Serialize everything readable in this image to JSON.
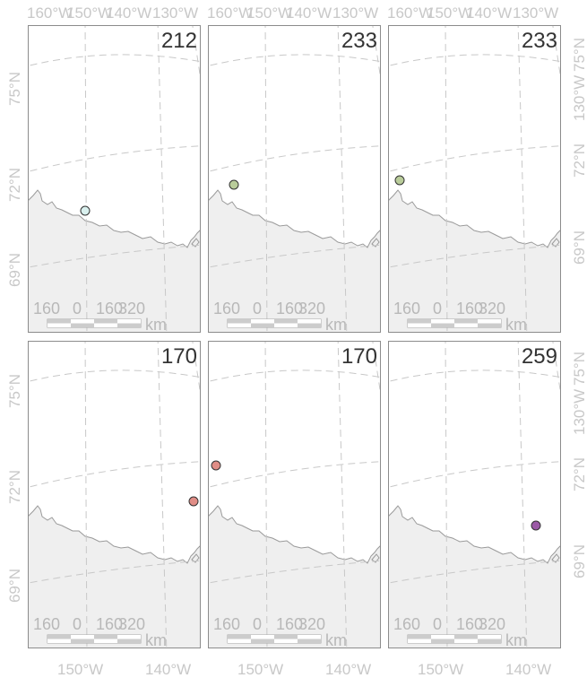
{
  "axis_labels": {
    "top": [
      "160°W",
      "150°W",
      "140°W",
      "130°W"
    ],
    "bottom": [
      "150°W",
      "140°W"
    ],
    "left": [
      "75°N",
      "72°N",
      "69°N"
    ],
    "right_top": [
      "75°N",
      "130°W",
      "72°N",
      "69°N"
    ],
    "right_bottom": [
      "75°N",
      "130°W",
      "72°N",
      "69°N"
    ]
  },
  "scale_bar": {
    "ticks": [
      "160",
      "0",
      "160",
      "320"
    ],
    "unit": "km"
  },
  "panels": [
    {
      "title": "212",
      "point_color": "#d9f0ee"
    },
    {
      "title": "233",
      "point_color": "#b9cc9a"
    },
    {
      "title": "233",
      "point_color": "#b9cc9a"
    },
    {
      "title": "170",
      "point_color": "#e08d86"
    },
    {
      "title": "170",
      "point_color": "#e08d86"
    },
    {
      "title": "259",
      "point_color": "#9b59a6"
    }
  ],
  "colors": {
    "land": "#efefef",
    "coast": "#9a9a9a",
    "graticule": "#c8c8c8",
    "frame": "#8c8c8c"
  }
}
